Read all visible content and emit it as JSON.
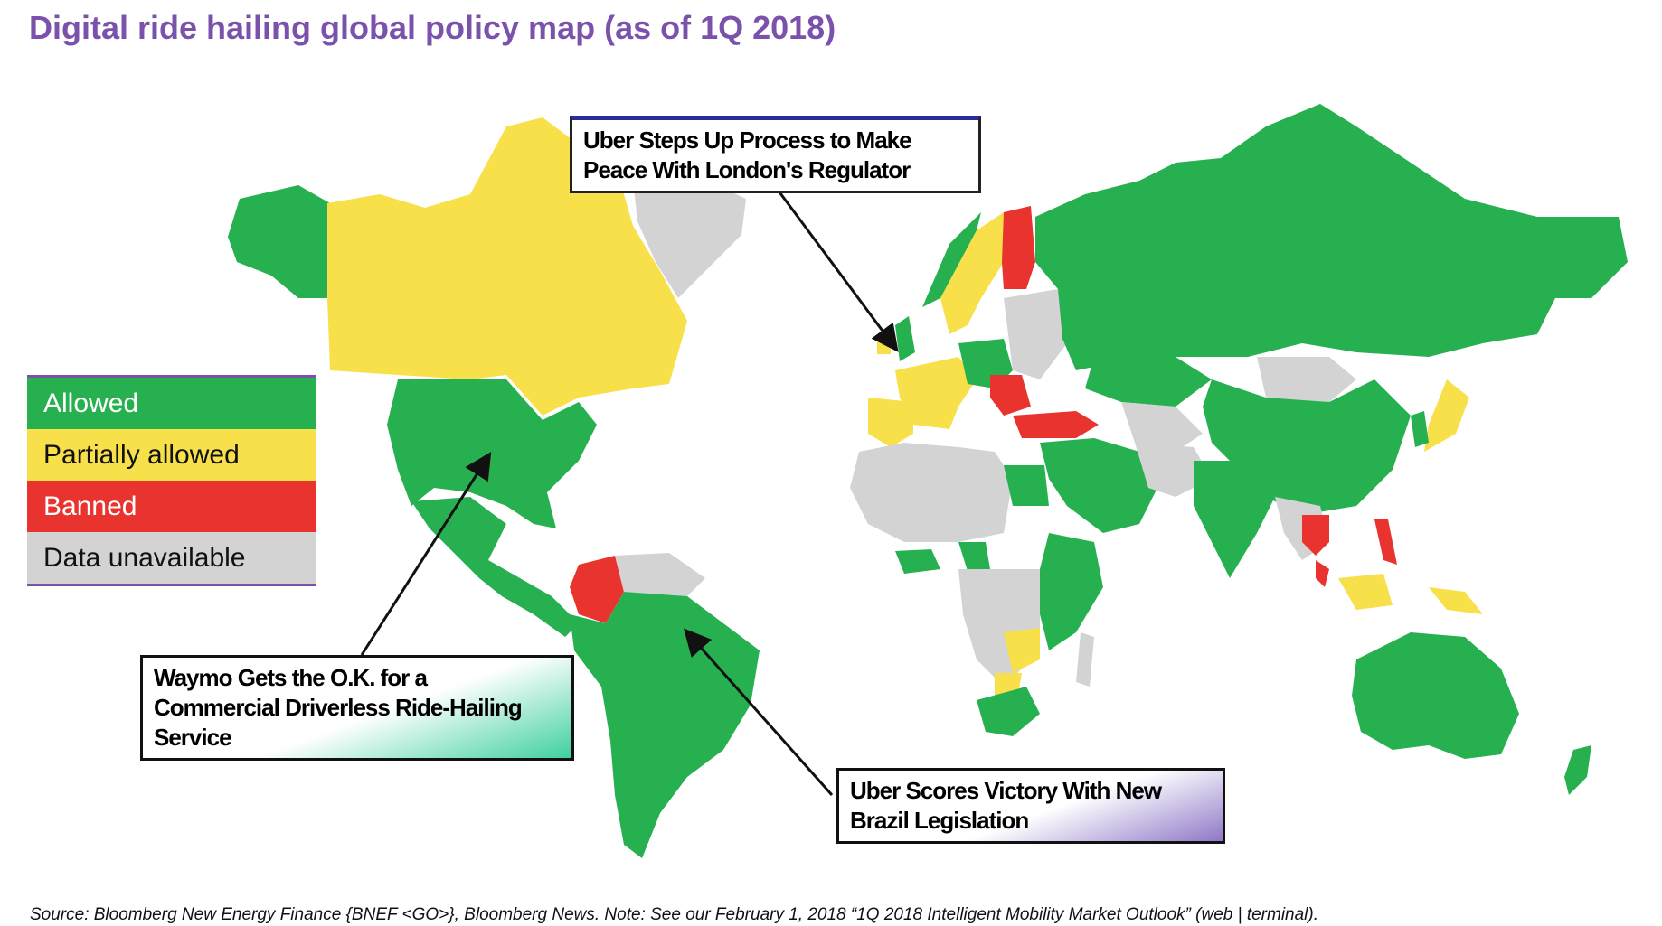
{
  "title": "Digital ride hailing global policy map (as of 1Q 2018)",
  "legend": [
    {
      "label": "Allowed",
      "color": "#27b050",
      "text_color": "#ffffff"
    },
    {
      "label": "Partially allowed",
      "color": "#f7e04a",
      "text_color": "#111111"
    },
    {
      "label": "Banned",
      "color": "#e8332e",
      "text_color": "#ffffff"
    },
    {
      "label": "Data unavailable",
      "color": "#d3d3d3",
      "text_color": "#111111"
    }
  ],
  "headlines": {
    "london": {
      "line1": "Uber Steps Up Process to Make",
      "line2": "Peace With London's Regulator"
    },
    "waymo": {
      "line1": "Waymo Gets the O.K. for a",
      "line2": "Commercial Driverless Ride-Hailing",
      "line3": "Service"
    },
    "brazil": {
      "line1": "Uber Scores Victory With New",
      "line2": "Brazil Legislation"
    }
  },
  "source": {
    "prefix": "Source: Bloomberg New Energy Finance {",
    "bnef_link": "BNEF <GO>",
    "middle": "}, Bloomberg News. Note: See our February 1, 2018 “1Q 2018 Intelligent Mobility Market Outlook” (",
    "web_link": "web",
    "separator": " | ",
    "terminal_link": "terminal",
    "suffix": ")."
  },
  "colors": {
    "allowed": "#27b050",
    "partial": "#f7e04a",
    "banned": "#e8332e",
    "unavailable": "#d3d3d3",
    "accent": "#7b52ab"
  }
}
